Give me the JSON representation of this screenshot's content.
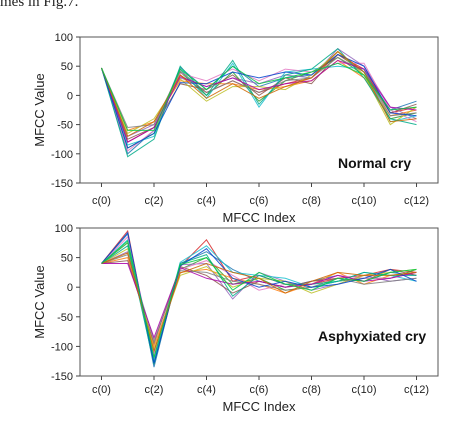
{
  "caption": "mes in Fig.7.",
  "chart_data": [
    {
      "type": "line",
      "annotation": "Normal cry",
      "xlabel": "MFCC Index",
      "ylabel": "MFCC Value",
      "ylim": [
        -150,
        100
      ],
      "yticks": [
        100,
        50,
        0,
        -50,
        -100,
        -150
      ],
      "x": [
        0,
        1,
        2,
        3,
        4,
        5,
        6,
        7,
        8,
        9,
        10,
        11,
        12
      ],
      "xtick_positions": [
        0,
        2,
        4,
        6,
        8,
        10,
        12
      ],
      "xtick_labels": [
        "c(0)",
        "c(2)",
        "c(4)",
        "c(6)",
        "c(8)",
        "c(10)",
        "c(12)"
      ],
      "grid": false,
      "series": [
        {
          "color": "#1f77b4",
          "values": [
            47,
            -100,
            -60,
            48,
            10,
            50,
            15,
            30,
            35,
            75,
            40,
            -25,
            -10
          ]
        },
        {
          "color": "#d62728",
          "values": [
            47,
            -80,
            -55,
            35,
            5,
            25,
            5,
            20,
            30,
            70,
            45,
            -30,
            -20
          ]
        },
        {
          "color": "#2ca02c",
          "values": [
            47,
            -90,
            -65,
            40,
            0,
            40,
            -10,
            25,
            40,
            65,
            35,
            -40,
            -30
          ]
        },
        {
          "color": "#9467bd",
          "values": [
            47,
            -70,
            -50,
            30,
            15,
            30,
            20,
            35,
            30,
            80,
            50,
            -20,
            -40
          ]
        },
        {
          "color": "#ff7f0e",
          "values": [
            47,
            -60,
            -45,
            25,
            20,
            20,
            10,
            15,
            25,
            60,
            30,
            -35,
            -25
          ]
        },
        {
          "color": "#17becf",
          "values": [
            47,
            -85,
            -70,
            45,
            -5,
            55,
            -20,
            40,
            45,
            50,
            45,
            -45,
            -35
          ]
        },
        {
          "color": "#8c564b",
          "values": [
            47,
            -75,
            -55,
            20,
            10,
            35,
            0,
            30,
            20,
            70,
            40,
            -30,
            -15
          ]
        },
        {
          "color": "#e377c2",
          "values": [
            47,
            -95,
            -60,
            38,
            25,
            45,
            25,
            45,
            40,
            55,
            55,
            -25,
            -45
          ]
        },
        {
          "color": "#bcbd22",
          "values": [
            47,
            -65,
            -40,
            28,
            -10,
            15,
            15,
            10,
            35,
            75,
            35,
            -50,
            -20
          ]
        },
        {
          "color": "#7f7f7f",
          "values": [
            47,
            -55,
            -50,
            42,
            5,
            25,
            5,
            25,
            30,
            65,
            40,
            -35,
            -30
          ]
        },
        {
          "color": "#00aa88",
          "values": [
            47,
            -105,
            -75,
            50,
            0,
            60,
            -15,
            35,
            45,
            80,
            30,
            -40,
            -50
          ]
        },
        {
          "color": "#aa00aa",
          "values": [
            47,
            -80,
            -55,
            32,
            15,
            30,
            10,
            20,
            25,
            60,
            45,
            -20,
            -25
          ]
        },
        {
          "color": "#0044cc",
          "values": [
            47,
            -90,
            -65,
            22,
            20,
            40,
            30,
            40,
            35,
            70,
            50,
            -30,
            -35
          ]
        },
        {
          "color": "#cc6600",
          "values": [
            47,
            -70,
            -45,
            35,
            -5,
            20,
            -5,
            15,
            30,
            75,
            40,
            -45,
            -40
          ]
        },
        {
          "color": "#00cc44",
          "values": [
            47,
            -60,
            -60,
            45,
            10,
            50,
            20,
            30,
            40,
            55,
            35,
            -25,
            -20
          ]
        }
      ]
    },
    {
      "type": "line",
      "annotation": "Asphyxiated cry",
      "xlabel": "MFCC Index",
      "ylabel": "MFCC Value",
      "ylim": [
        -150,
        100
      ],
      "yticks": [
        100,
        50,
        0,
        -50,
        -100,
        -150
      ],
      "x": [
        0,
        1,
        2,
        3,
        4,
        5,
        6,
        7,
        8,
        9,
        10,
        11,
        12
      ],
      "xtick_positions": [
        0,
        2,
        4,
        6,
        8,
        10,
        12
      ],
      "xtick_labels": [
        "c(0)",
        "c(2)",
        "c(4)",
        "c(6)",
        "c(8)",
        "c(10)",
        "c(12)"
      ],
      "grid": false,
      "series": [
        {
          "color": "#d62728",
          "values": [
            40,
            95,
            -130,
            35,
            80,
            10,
            20,
            5,
            5,
            15,
            20,
            30,
            25
          ]
        },
        {
          "color": "#1f77b4",
          "values": [
            40,
            90,
            -135,
            40,
            60,
            30,
            10,
            0,
            10,
            20,
            10,
            25,
            20
          ]
        },
        {
          "color": "#2ca02c",
          "values": [
            40,
            75,
            -120,
            30,
            50,
            5,
            15,
            -5,
            0,
            10,
            15,
            15,
            30
          ]
        },
        {
          "color": "#9467bd",
          "values": [
            40,
            60,
            -110,
            38,
            40,
            -20,
            25,
            10,
            -5,
            5,
            20,
            10,
            15
          ]
        },
        {
          "color": "#ff7f0e",
          "values": [
            40,
            50,
            -100,
            25,
            30,
            15,
            5,
            -10,
            5,
            25,
            5,
            20,
            25
          ]
        },
        {
          "color": "#17becf",
          "values": [
            40,
            80,
            -125,
            42,
            70,
            25,
            20,
            15,
            0,
            10,
            25,
            20,
            10
          ]
        },
        {
          "color": "#8c564b",
          "values": [
            40,
            45,
            -95,
            35,
            20,
            -10,
            10,
            0,
            10,
            15,
            10,
            30,
            20
          ]
        },
        {
          "color": "#e377c2",
          "values": [
            40,
            85,
            -115,
            30,
            45,
            20,
            -5,
            5,
            5,
            20,
            15,
            15,
            25
          ]
        },
        {
          "color": "#bcbd22",
          "values": [
            40,
            65,
            -105,
            20,
            35,
            0,
            15,
            10,
            -10,
            5,
            20,
            25,
            30
          ]
        },
        {
          "color": "#7f7f7f",
          "values": [
            40,
            55,
            -90,
            28,
            25,
            10,
            5,
            -5,
            0,
            15,
            5,
            10,
            15
          ]
        },
        {
          "color": "#00aa88",
          "values": [
            40,
            70,
            -130,
            40,
            55,
            -15,
            20,
            5,
            5,
            10,
            25,
            20,
            20
          ]
        },
        {
          "color": "#aa00aa",
          "values": [
            40,
            40,
            -85,
            33,
            15,
            5,
            10,
            0,
            5,
            20,
            10,
            15,
            25
          ]
        },
        {
          "color": "#0044cc",
          "values": [
            40,
            92,
            -128,
            36,
            65,
            15,
            0,
            10,
            0,
            5,
            15,
            30,
            10
          ]
        },
        {
          "color": "#cc6600",
          "values": [
            40,
            58,
            -108,
            24,
            40,
            25,
            15,
            -10,
            10,
            25,
            20,
            20,
            25
          ]
        },
        {
          "color": "#00cc44",
          "values": [
            40,
            78,
            -118,
            38,
            50,
            -5,
            25,
            5,
            -5,
            15,
            10,
            25,
            30
          ]
        }
      ]
    }
  ]
}
